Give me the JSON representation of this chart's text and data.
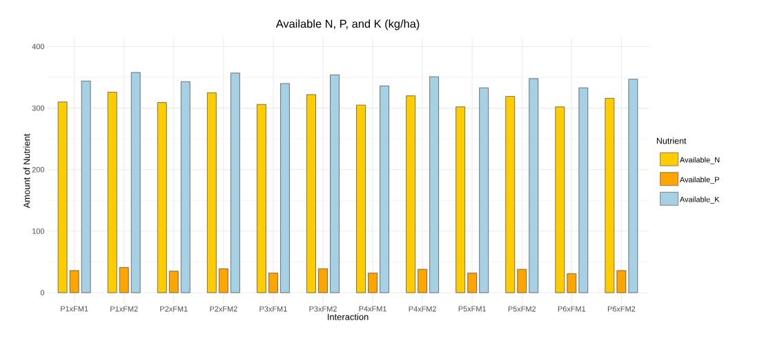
{
  "chart_data": {
    "type": "bar",
    "title": "Available N, P, and K (kg/ha)",
    "xlabel": "Interaction",
    "ylabel": "Amount of Nutrient",
    "legend_title": "Nutrient",
    "categories": [
      "P1xFM1",
      "P1xFM2",
      "P2xFM1",
      "P2xFM2",
      "P3xFM1",
      "P3xFM2",
      "P4xFM1",
      "P4xFM2",
      "P5xFM1",
      "P5xFM2",
      "P6xFM1",
      "P6xFM2"
    ],
    "series": [
      {
        "name": "Available_N",
        "color": "#ffcc00",
        "values": [
          310,
          326,
          309,
          325,
          306,
          322,
          305,
          320,
          302,
          319,
          302,
          316
        ]
      },
      {
        "name": "Available_P",
        "color": "#ffa500",
        "values": [
          36,
          41,
          35,
          39,
          32,
          39,
          32,
          38,
          32,
          38,
          31,
          36
        ]
      },
      {
        "name": "Available_K",
        "color": "#a6d0e4",
        "values": [
          344,
          358,
          343,
          357,
          340,
          354,
          336,
          351,
          333,
          348,
          333,
          347
        ]
      }
    ],
    "ylim": [
      -18,
      414
    ],
    "yticks": [
      0,
      100,
      200,
      300,
      400
    ],
    "grid": true,
    "legend": "right"
  }
}
